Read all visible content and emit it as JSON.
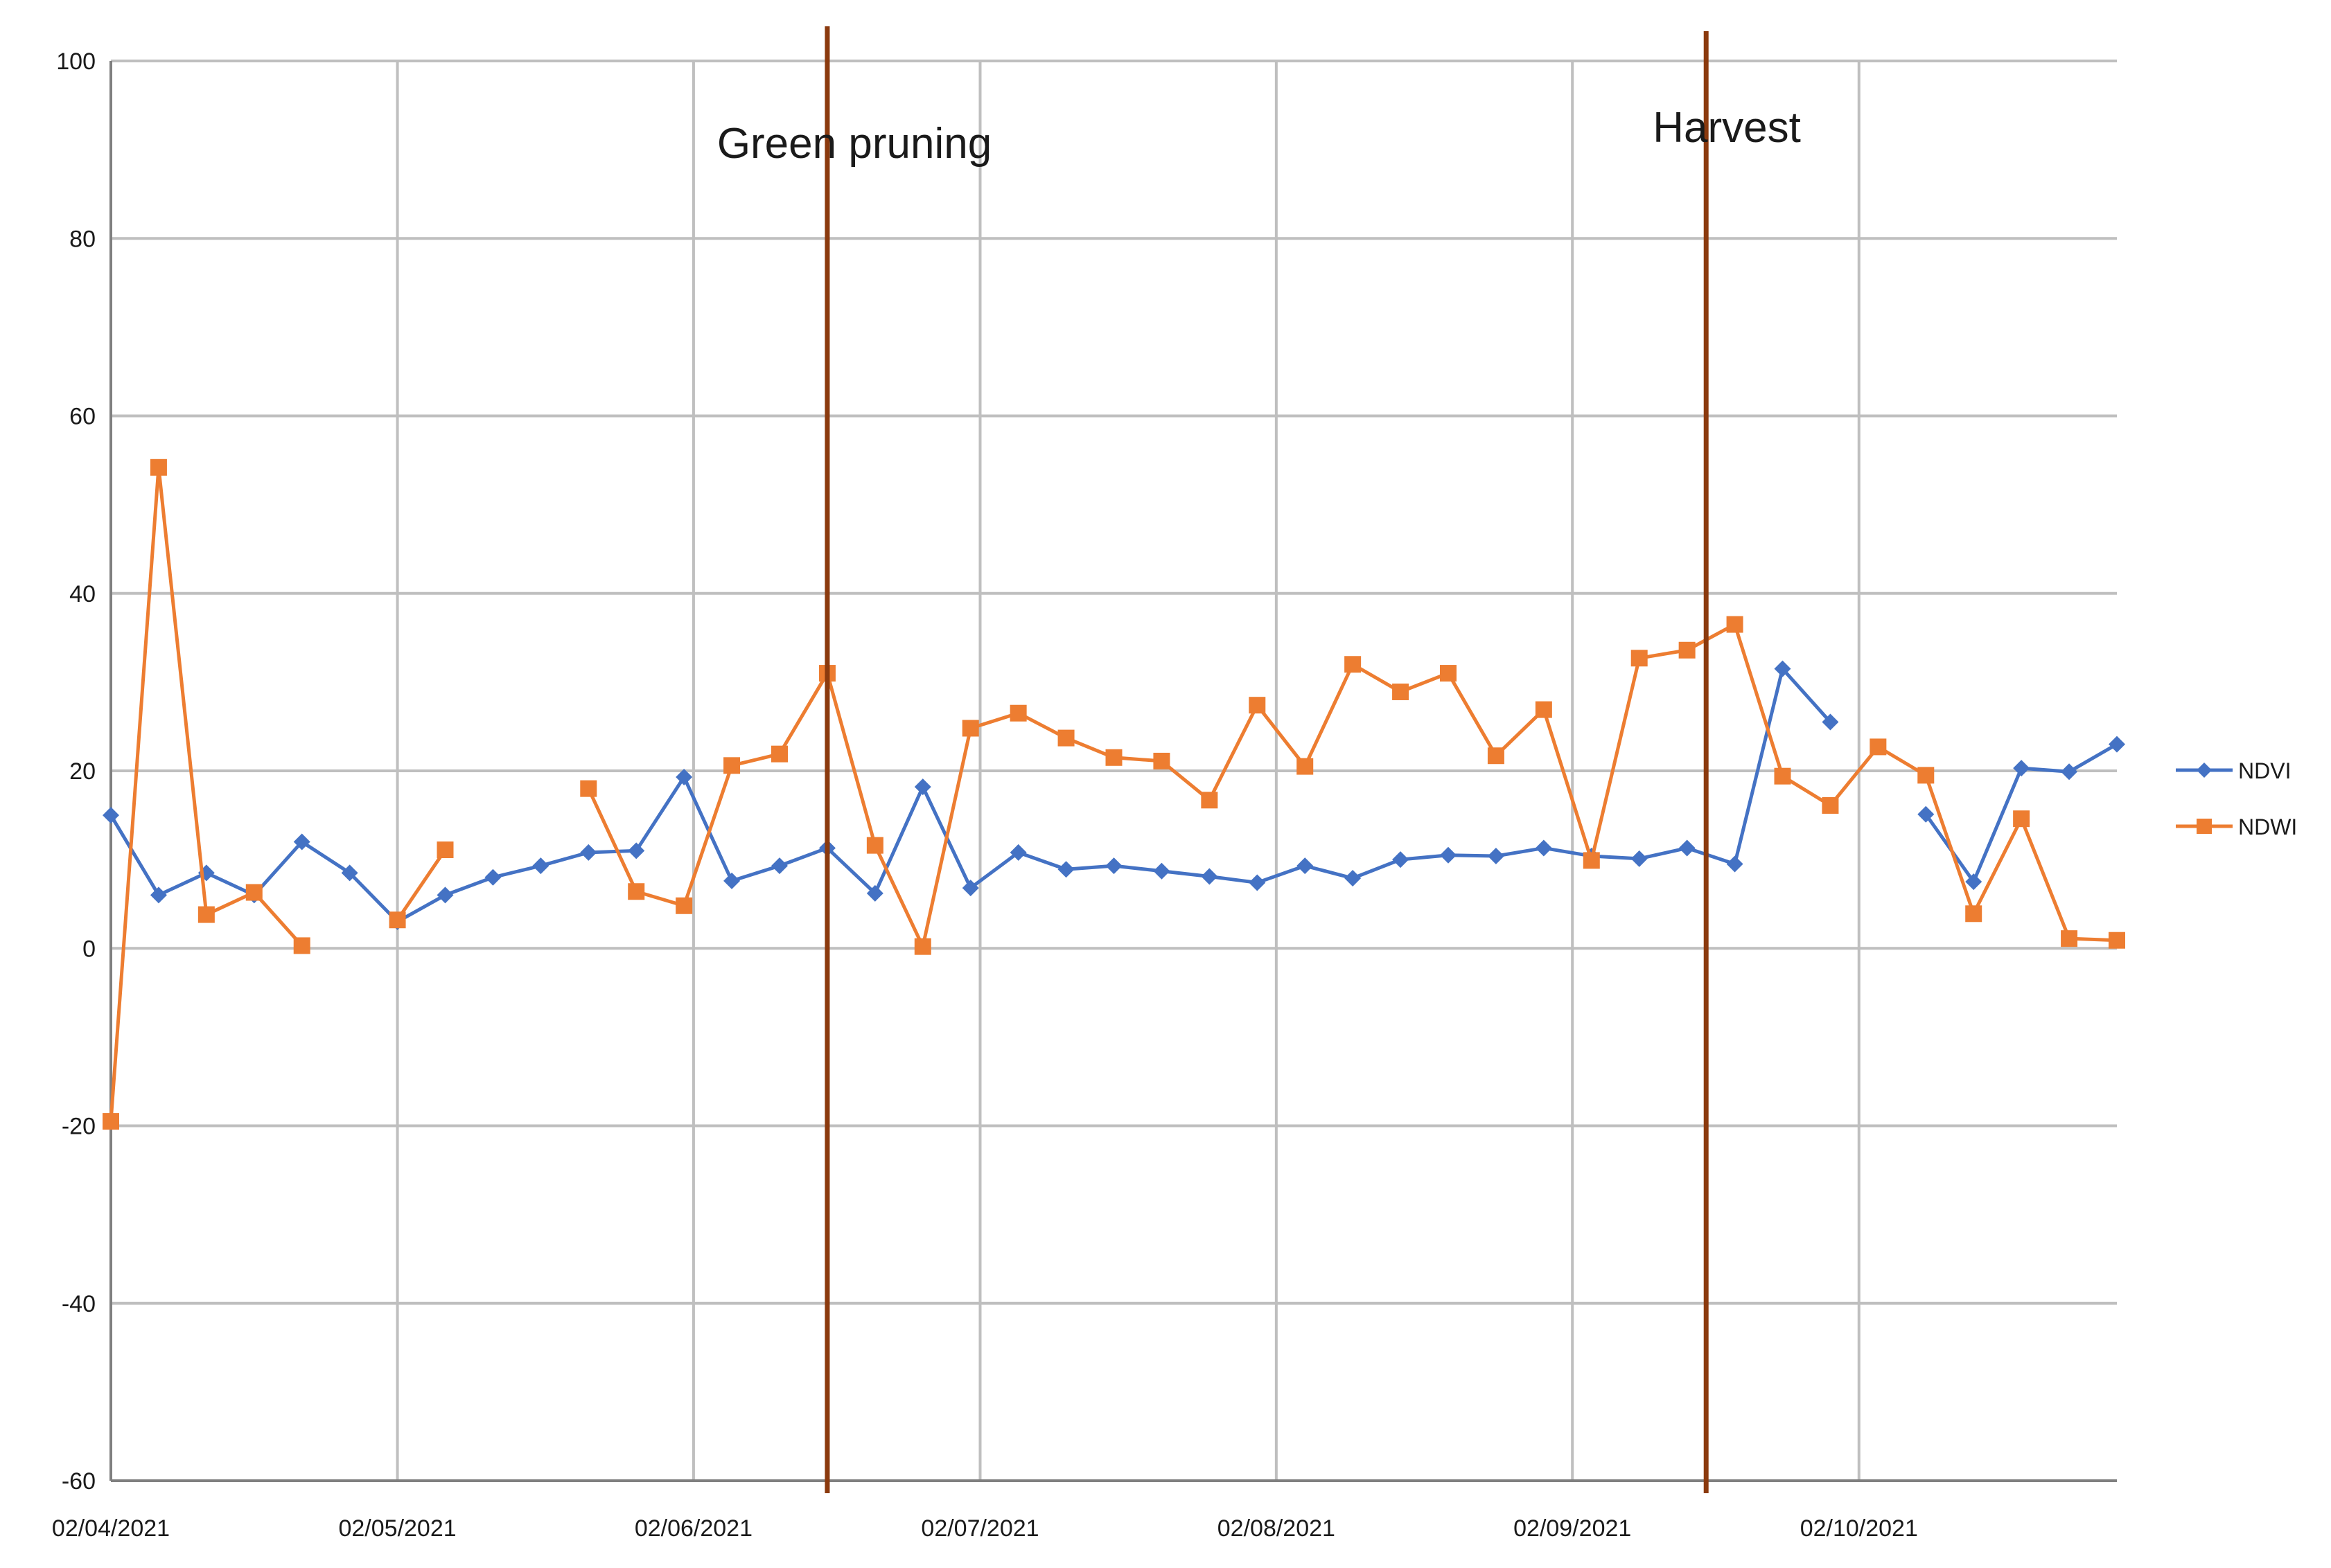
{
  "chart_data": {
    "type": "line",
    "title": "",
    "xlabel": "",
    "ylabel": "",
    "ylim": [
      -60,
      100
    ],
    "y_ticks": [
      "100",
      "80",
      "60",
      "40",
      "20",
      "0",
      "-20",
      "-40",
      "-60"
    ],
    "x_ticks": [
      "02/04/2021",
      "02/05/2021",
      "02/06/2021",
      "02/07/2021",
      "02/08/2021",
      "02/09/2021",
      "02/10/2021"
    ],
    "x_tick_dates": [
      "2021-04-02",
      "2021-05-02",
      "2021-06-02",
      "2021-07-02",
      "2021-08-02",
      "2021-09-02",
      "2021-10-02"
    ],
    "grid": true,
    "legend_position": "right",
    "series": [
      {
        "name": "NDVI",
        "color": "#4472c4",
        "marker": "diamond",
        "points": [
          {
            "x": "2021-04-02",
            "y": 15
          },
          {
            "x": "2021-04-07",
            "y": 6
          },
          {
            "x": "2021-04-12",
            "y": 8.5
          },
          {
            "x": "2021-04-17",
            "y": 6
          },
          {
            "x": "2021-04-22",
            "y": 12
          },
          {
            "x": "2021-04-27",
            "y": 8.5
          },
          {
            "x": "2021-05-02",
            "y": 3
          },
          {
            "x": "2021-05-07",
            "y": 6
          },
          {
            "x": "2021-05-12",
            "y": 8
          },
          {
            "x": "2021-05-17",
            "y": 9.3
          },
          {
            "x": "2021-05-22",
            "y": 10.8
          },
          {
            "x": "2021-05-27",
            "y": 11
          },
          {
            "x": "2021-06-01",
            "y": 19.3
          },
          {
            "x": "2021-06-06",
            "y": 7.6
          },
          {
            "x": "2021-06-11",
            "y": 9.3
          },
          {
            "x": "2021-06-16",
            "y": 11.3
          },
          {
            "x": "2021-06-21",
            "y": 6.2
          },
          {
            "x": "2021-06-26",
            "y": 18.2
          },
          {
            "x": "2021-07-01",
            "y": 6.8
          },
          {
            "x": "2021-07-06",
            "y": 10.8
          },
          {
            "x": "2021-07-11",
            "y": 8.9
          },
          {
            "x": "2021-07-16",
            "y": 9.3
          },
          {
            "x": "2021-07-21",
            "y": 8.7
          },
          {
            "x": "2021-07-26",
            "y": 8.1
          },
          {
            "x": "2021-07-31",
            "y": 7.4
          },
          {
            "x": "2021-08-05",
            "y": 9.3
          },
          {
            "x": "2021-08-10",
            "y": 7.9
          },
          {
            "x": "2021-08-15",
            "y": 10
          },
          {
            "x": "2021-08-20",
            "y": 10.5
          },
          {
            "x": "2021-08-25",
            "y": 10.4
          },
          {
            "x": "2021-08-30",
            "y": 11.3
          },
          {
            "x": "2021-09-04",
            "y": 10.4
          },
          {
            "x": "2021-09-09",
            "y": 10.1
          },
          {
            "x": "2021-09-14",
            "y": 11.3
          },
          {
            "x": "2021-09-19",
            "y": 9.5
          },
          {
            "x": "2021-09-24",
            "y": 31.5
          },
          {
            "x": "2021-09-29",
            "y": 25.5
          },
          {
            "x": "2021-10-04",
            "y": null
          },
          {
            "x": "2021-10-09",
            "y": 15.1
          },
          {
            "x": "2021-10-14",
            "y": 7.5
          },
          {
            "x": "2021-10-19",
            "y": 20.3
          },
          {
            "x": "2021-10-24",
            "y": 19.9
          },
          {
            "x": "2021-10-29",
            "y": 23
          }
        ]
      },
      {
        "name": "NDWI",
        "color": "#ed7d31",
        "marker": "square",
        "points": [
          {
            "x": "2021-04-02",
            "y": -19.5
          },
          {
            "x": "2021-04-07",
            "y": 54.2
          },
          {
            "x": "2021-04-12",
            "y": 3.8
          },
          {
            "x": "2021-04-17",
            "y": 6.3
          },
          {
            "x": "2021-04-22",
            "y": 0.3
          },
          {
            "x": "2021-04-27",
            "y": null
          },
          {
            "x": "2021-05-02",
            "y": 3.2
          },
          {
            "x": "2021-05-07",
            "y": 11.1
          },
          {
            "x": "2021-05-12",
            "y": null
          },
          {
            "x": "2021-05-17",
            "y": null
          },
          {
            "x": "2021-05-22",
            "y": 18
          },
          {
            "x": "2021-05-27",
            "y": 6.4
          },
          {
            "x": "2021-06-01",
            "y": 4.8
          },
          {
            "x": "2021-06-06",
            "y": 20.6
          },
          {
            "x": "2021-06-11",
            "y": 21.9
          },
          {
            "x": "2021-06-16",
            "y": 31
          },
          {
            "x": "2021-06-21",
            "y": 11.6
          },
          {
            "x": "2021-06-26",
            "y": 0.2
          },
          {
            "x": "2021-07-01",
            "y": 24.8
          },
          {
            "x": "2021-07-06",
            "y": 26.5
          },
          {
            "x": "2021-07-11",
            "y": 23.7
          },
          {
            "x": "2021-07-16",
            "y": 21.5
          },
          {
            "x": "2021-07-21",
            "y": 21.1
          },
          {
            "x": "2021-07-26",
            "y": 16.7
          },
          {
            "x": "2021-07-31",
            "y": 27.4
          },
          {
            "x": "2021-08-05",
            "y": 20.5
          },
          {
            "x": "2021-08-10",
            "y": 32
          },
          {
            "x": "2021-08-15",
            "y": 28.9
          },
          {
            "x": "2021-08-20",
            "y": 31
          },
          {
            "x": "2021-08-25",
            "y": 21.7
          },
          {
            "x": "2021-08-30",
            "y": 26.9
          },
          {
            "x": "2021-09-04",
            "y": 9.9
          },
          {
            "x": "2021-09-09",
            "y": 32.7
          },
          {
            "x": "2021-09-14",
            "y": 33.6
          },
          {
            "x": "2021-09-19",
            "y": 36.5
          },
          {
            "x": "2021-09-24",
            "y": 19.4
          },
          {
            "x": "2021-09-29",
            "y": 16.1
          },
          {
            "x": "2021-10-04",
            "y": 22.7
          },
          {
            "x": "2021-10-09",
            "y": 19.5
          },
          {
            "x": "2021-10-14",
            "y": 3.9
          },
          {
            "x": "2021-10-19",
            "y": 14.6
          },
          {
            "x": "2021-10-24",
            "y": 1.1
          },
          {
            "x": "2021-10-29",
            "y": 0.9
          }
        ]
      }
    ],
    "events": [
      {
        "label": "Green  pruning",
        "x": "2021-06-16",
        "color": "#8b3a0e"
      },
      {
        "label": "Harvest",
        "x": "2021-09-16",
        "color": "#8b3a0e"
      }
    ]
  }
}
